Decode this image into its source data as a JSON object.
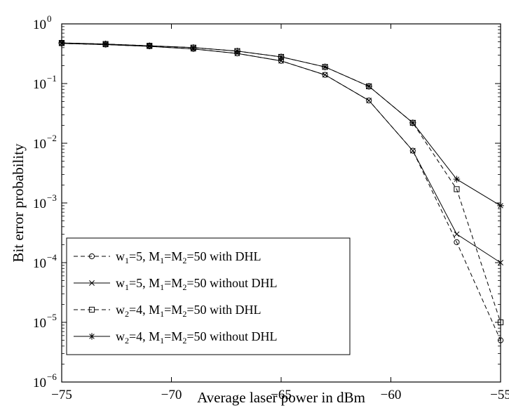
{
  "chart_data": {
    "type": "line",
    "title": "",
    "xlabel": "Average laser power in dBm",
    "ylabel": "Bit error probability",
    "xlim": [
      -75,
      -55
    ],
    "ylim": [
      1e-06,
      1
    ],
    "y_scale": "log",
    "grid": false,
    "legend_position": "bottom-left",
    "x_ticks": [
      -75,
      -70,
      -65,
      -60,
      -55
    ],
    "x_tick_labels": [
      "−75",
      "−70",
      "−65",
      "−60",
      "−55"
    ],
    "y_ticks": [
      1e-06,
      1e-05,
      0.0001,
      0.001,
      0.01,
      0.1,
      1
    ],
    "y_tick_labels": [
      {
        "base": "10",
        "exp": "−6"
      },
      {
        "base": "10",
        "exp": "−5"
      },
      {
        "base": "10",
        "exp": "−4"
      },
      {
        "base": "10",
        "exp": "−3"
      },
      {
        "base": "10",
        "exp": "−2"
      },
      {
        "base": "10",
        "exp": "−1"
      },
      {
        "base": "10",
        "exp": "0"
      }
    ],
    "series": [
      {
        "name": "w1=5, M1=M2=50 with DHL",
        "label_parts": [
          {
            "t": "w"
          },
          {
            "t": "1",
            "sub": true
          },
          {
            "t": "=5, M"
          },
          {
            "t": "1",
            "sub": true
          },
          {
            "t": "=M"
          },
          {
            "t": "2",
            "sub": true
          },
          {
            "t": "=50 with DHL"
          }
        ],
        "line_style": "dashed",
        "marker": "circle",
        "x": [
          -75,
          -73,
          -71,
          -69,
          -67,
          -65,
          -63,
          -61,
          -59,
          -57,
          -55
        ],
        "y": [
          0.47,
          0.45,
          0.42,
          0.38,
          0.32,
          0.24,
          0.14,
          0.052,
          0.0075,
          0.00022,
          5e-06
        ]
      },
      {
        "name": "w1=5, M1=M2=50 without DHL",
        "label_parts": [
          {
            "t": "w"
          },
          {
            "t": "1",
            "sub": true
          },
          {
            "t": "=5, M"
          },
          {
            "t": "1",
            "sub": true
          },
          {
            "t": "=M"
          },
          {
            "t": "2",
            "sub": true
          },
          {
            "t": "=50 without DHL"
          }
        ],
        "line_style": "solid",
        "marker": "x",
        "x": [
          -75,
          -73,
          -71,
          -69,
          -67,
          -65,
          -63,
          -61,
          -59,
          -57,
          -55
        ],
        "y": [
          0.47,
          0.45,
          0.42,
          0.38,
          0.32,
          0.24,
          0.14,
          0.052,
          0.0075,
          0.0003,
          0.0001
        ]
      },
      {
        "name": "w2=4, M1=M2=50 with DHL",
        "label_parts": [
          {
            "t": "w"
          },
          {
            "t": "2",
            "sub": true
          },
          {
            "t": "=4, M"
          },
          {
            "t": "1",
            "sub": true
          },
          {
            "t": "=M"
          },
          {
            "t": "2",
            "sub": true
          },
          {
            "t": "=50 with DHL"
          }
        ],
        "line_style": "dashed",
        "marker": "square",
        "x": [
          -75,
          -73,
          -71,
          -69,
          -67,
          -65,
          -63,
          -61,
          -59,
          -57,
          -55
        ],
        "y": [
          0.48,
          0.46,
          0.43,
          0.4,
          0.35,
          0.28,
          0.19,
          0.09,
          0.022,
          0.0017,
          1e-05
        ]
      },
      {
        "name": "w2=4, M1=M2=50 without DHL",
        "label_parts": [
          {
            "t": "w"
          },
          {
            "t": "2",
            "sub": true
          },
          {
            "t": "=4, M"
          },
          {
            "t": "1",
            "sub": true
          },
          {
            "t": "=M"
          },
          {
            "t": "2",
            "sub": true
          },
          {
            "t": "=50 without DHL"
          }
        ],
        "line_style": "solid",
        "marker": "asterisk",
        "x": [
          -75,
          -73,
          -71,
          -69,
          -67,
          -65,
          -63,
          -61,
          -59,
          -57,
          -55
        ],
        "y": [
          0.48,
          0.46,
          0.43,
          0.4,
          0.35,
          0.28,
          0.19,
          0.09,
          0.022,
          0.0025,
          0.0009
        ]
      }
    ]
  }
}
